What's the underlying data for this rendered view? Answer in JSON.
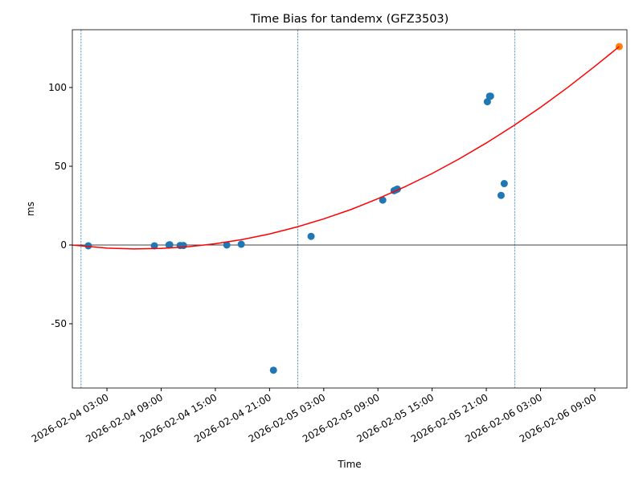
{
  "chart_data": {
    "type": "scatter",
    "title": "Time Bias for tandemx (GFZ3503)",
    "x_label": "Time",
    "y_label": "ms",
    "xlim": [
      "2026-02-03 23:10",
      "2026-02-06 12:34"
    ],
    "ylim": [
      -90.8,
      136.7
    ],
    "yticks": [
      -50,
      0,
      50,
      100
    ],
    "xticks": [
      "2026-02-04 03:00",
      "2026-02-04 09:00",
      "2026-02-04 15:00",
      "2026-02-04 21:00",
      "2026-02-05 03:00",
      "2026-02-05 09:00",
      "2026-02-05 15:00",
      "2026-02-05 21:00",
      "2026-02-06 03:00",
      "2026-02-06 09:00"
    ],
    "series": [
      {
        "type": "scatter",
        "color": "#1f77b4",
        "x": [
          "2026-02-04 00:56",
          "2026-02-04 08:15",
          "2026-02-04 09:52",
          "2026-02-04 09:57",
          "2026-02-04 11:06",
          "2026-02-04 11:28",
          "2026-02-04 16:16",
          "2026-02-04 17:52",
          "2026-02-04 21:26",
          "2026-02-05 01:36",
          "2026-02-05 09:32",
          "2026-02-05 10:47",
          "2026-02-05 10:58",
          "2026-02-05 11:09",
          "2026-02-05 21:07",
          "2026-02-05 21:22",
          "2026-02-05 21:28",
          "2026-02-05 22:38",
          "2026-02-05 22:59"
        ],
        "values": [
          -0.5,
          -0.5,
          0,
          0.2,
          -0.3,
          -0.3,
          0,
          0.5,
          -79.5,
          5.5,
          28.5,
          34.5,
          35,
          35.5,
          91,
          94.5,
          94.5,
          31.5,
          39
        ]
      },
      {
        "type": "scatter",
        "color": "#ff7f0e",
        "x": [
          "2026-02-06 11:43"
        ],
        "values": [
          126
        ]
      },
      {
        "type": "line",
        "color": "#ff0000",
        "x": [
          "2026-02-03 23:12",
          "2026-02-04 03:00",
          "2026-02-04 06:00",
          "2026-02-04 09:00",
          "2026-02-04 12:00",
          "2026-02-04 15:00",
          "2026-02-04 18:00",
          "2026-02-04 21:00",
          "2026-02-05 00:00",
          "2026-02-05 03:00",
          "2026-02-05 06:00",
          "2026-02-05 09:00",
          "2026-02-05 12:00",
          "2026-02-05 15:00",
          "2026-02-05 18:00",
          "2026-02-05 21:00",
          "2026-02-06 00:00",
          "2026-02-06 03:00",
          "2026-02-06 06:00",
          "2026-02-06 09:00",
          "2026-02-06 11:43"
        ],
        "values": [
          -0.1,
          -1.95,
          -2.5,
          -2.2,
          -1.1,
          0.8,
          3.5,
          7.0,
          11.4,
          16.6,
          22.5,
          29.4,
          37.0,
          45.4,
          54.7,
          64.8,
          75.7,
          87.4,
          100.0,
          113.4,
          126
        ]
      }
    ],
    "vlines": {
      "color": "#1f77b4",
      "x": [
        "2026-02-04 00:08",
        "2026-02-05 00:08",
        "2026-02-06 00:08"
      ]
    },
    "hline": {
      "color": "#000000",
      "value": 0
    }
  }
}
